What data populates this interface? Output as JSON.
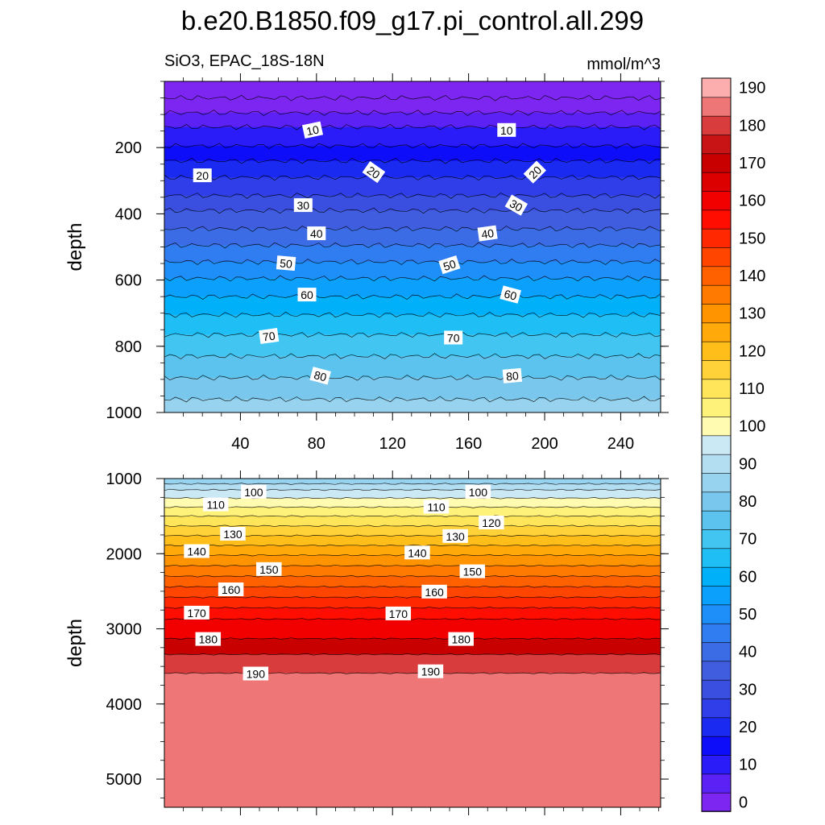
{
  "title": "b.e20.B1850.f09_g17.pi_control.all.299",
  "subtitle_left": "SiO3, EPAC_18S-18N",
  "subtitle_right": "mmol/m^3",
  "chart_data": {
    "type": "contour",
    "variable": "SiO3",
    "region": "EPAC_18S-18N",
    "units": "mmol/m^3",
    "colorbar": {
      "levels": [
        0,
        5,
        10,
        15,
        20,
        25,
        30,
        35,
        40,
        45,
        50,
        55,
        60,
        65,
        70,
        75,
        80,
        85,
        90,
        95,
        100,
        105,
        110,
        115,
        120,
        125,
        130,
        135,
        140,
        145,
        150,
        155,
        160,
        165,
        170,
        175,
        180,
        185,
        190
      ],
      "tick_labels": [
        "0",
        "10",
        "20",
        "30",
        "40",
        "50",
        "60",
        "70",
        "80",
        "90",
        "100",
        "110",
        "120",
        "130",
        "140",
        "150",
        "160",
        "170",
        "180",
        "190"
      ],
      "colors": [
        "#7d26f2",
        "#5b21f5",
        "#2a1cf8",
        "#0d0dfa",
        "#1a2af0",
        "#2f3ee8",
        "#3a4ee0",
        "#3f5dde",
        "#3b6ce6",
        "#2f7df0",
        "#1e8ef8",
        "#0aa0fc",
        "#00b1fa",
        "#1fbff6",
        "#42c5f0",
        "#5bc3ee",
        "#79c7ec",
        "#97d3ef",
        "#b3def2",
        "#cbe8f5",
        "#fffbb0",
        "#fff27a",
        "#ffe55a",
        "#ffd23a",
        "#ffbe1a",
        "#ffaa0a",
        "#ff9300",
        "#ff7a00",
        "#ff6000",
        "#ff4500",
        "#ff2800",
        "#ff0d00",
        "#f20000",
        "#dc0000",
        "#c80000",
        "#c81414",
        "#d93c3c",
        "#ee7676",
        "#fcaeae"
      ]
    },
    "panels": [
      {
        "name": "upper",
        "ylabel": "depth",
        "ylim": [
          0,
          1000
        ],
        "yticks": [
          "200",
          "400",
          "600",
          "800",
          "1000"
        ],
        "xlim": [
          0,
          261
        ],
        "xticks": [
          "40",
          "80",
          "120",
          "160",
          "200",
          "240"
        ],
        "contours": [
          {
            "depth": 50,
            "value": 0
          },
          {
            "depth": 95,
            "value": 5
          },
          {
            "depth": 138,
            "value": 10
          },
          {
            "depth": 195,
            "value": 15
          },
          {
            "depth": 240,
            "value": 20
          },
          {
            "depth": 290,
            "value": 25
          },
          {
            "depth": 345,
            "value": 30
          },
          {
            "depth": 390,
            "value": 35
          },
          {
            "depth": 445,
            "value": 40
          },
          {
            "depth": 495,
            "value": 45
          },
          {
            "depth": 545,
            "value": 50
          },
          {
            "depth": 595,
            "value": 55
          },
          {
            "depth": 650,
            "value": 60
          },
          {
            "depth": 705,
            "value": 65
          },
          {
            "depth": 765,
            "value": 70
          },
          {
            "depth": 830,
            "value": 75
          },
          {
            "depth": 895,
            "value": 80
          },
          {
            "depth": 960,
            "value": 85
          }
        ],
        "labels": [
          {
            "text": "10",
            "x": 78,
            "depth": 148,
            "angle": -12
          },
          {
            "text": "10",
            "x": 180,
            "depth": 148,
            "angle": 0
          },
          {
            "text": "20",
            "x": 20,
            "depth": 285,
            "angle": 0
          },
          {
            "text": "20",
            "x": 110,
            "depth": 275,
            "angle": 35
          },
          {
            "text": "20",
            "x": 195,
            "depth": 275,
            "angle": -45
          },
          {
            "text": "30",
            "x": 73,
            "depth": 375,
            "angle": 0
          },
          {
            "text": "30",
            "x": 185,
            "depth": 375,
            "angle": 30
          },
          {
            "text": "40",
            "x": 80,
            "depth": 460,
            "angle": 0
          },
          {
            "text": "40",
            "x": 170,
            "depth": 460,
            "angle": -8
          },
          {
            "text": "50",
            "x": 64,
            "depth": 550,
            "angle": 5
          },
          {
            "text": "50",
            "x": 150,
            "depth": 555,
            "angle": -18
          },
          {
            "text": "60",
            "x": 75,
            "depth": 645,
            "angle": 0
          },
          {
            "text": "60",
            "x": 182,
            "depth": 645,
            "angle": 15
          },
          {
            "text": "70",
            "x": 55,
            "depth": 770,
            "angle": -8
          },
          {
            "text": "70",
            "x": 152,
            "depth": 775,
            "angle": 0
          },
          {
            "text": "80",
            "x": 82,
            "depth": 890,
            "angle": 15
          },
          {
            "text": "80",
            "x": 183,
            "depth": 890,
            "angle": -5
          }
        ]
      },
      {
        "name": "lower",
        "ylabel": "depth",
        "ylim": [
          1000,
          5375
        ],
        "yticks": [
          "1000",
          "2000",
          "3000",
          "4000",
          "5000"
        ],
        "contours": [
          {
            "depth": 1070,
            "value": 90
          },
          {
            "depth": 1150,
            "value": 95
          },
          {
            "depth": 1260,
            "value": 100
          },
          {
            "depth": 1380,
            "value": 105
          },
          {
            "depth": 1500,
            "value": 110
          },
          {
            "depth": 1630,
            "value": 115
          },
          {
            "depth": 1760,
            "value": 120
          },
          {
            "depth": 1890,
            "value": 125
          },
          {
            "depth": 2020,
            "value": 130
          },
          {
            "depth": 2160,
            "value": 135
          },
          {
            "depth": 2300,
            "value": 140
          },
          {
            "depth": 2440,
            "value": 145
          },
          {
            "depth": 2580,
            "value": 150
          },
          {
            "depth": 2720,
            "value": 155
          },
          {
            "depth": 2870,
            "value": 160
          },
          {
            "depth": 3130,
            "value": 170
          },
          {
            "depth": 3340,
            "value": 180
          },
          {
            "depth": 3590,
            "value": 185
          }
        ],
        "labels": [
          {
            "text": "100",
            "x": 47,
            "depth": 1180
          },
          {
            "text": "100",
            "x": 165,
            "depth": 1180
          },
          {
            "text": "110",
            "x": 27,
            "depth": 1350
          },
          {
            "text": "110",
            "x": 143,
            "depth": 1380
          },
          {
            "text": "120",
            "x": 172,
            "depth": 1590
          },
          {
            "text": "130",
            "x": 36,
            "depth": 1740
          },
          {
            "text": "130",
            "x": 153,
            "depth": 1770
          },
          {
            "text": "140",
            "x": 17,
            "depth": 1970
          },
          {
            "text": "140",
            "x": 133,
            "depth": 1990
          },
          {
            "text": "150",
            "x": 55,
            "depth": 2210
          },
          {
            "text": "150",
            "x": 162,
            "depth": 2240
          },
          {
            "text": "160",
            "x": 35,
            "depth": 2480
          },
          {
            "text": "160",
            "x": 142,
            "depth": 2510
          },
          {
            "text": "170",
            "x": 17,
            "depth": 2790
          },
          {
            "text": "170",
            "x": 123,
            "depth": 2800
          },
          {
            "text": "180",
            "x": 23,
            "depth": 3140
          },
          {
            "text": "180",
            "x": 156,
            "depth": 3140
          },
          {
            "text": "190",
            "x": 48,
            "depth": 3600
          },
          {
            "text": "190",
            "x": 140,
            "depth": 3570
          }
        ]
      }
    ]
  }
}
